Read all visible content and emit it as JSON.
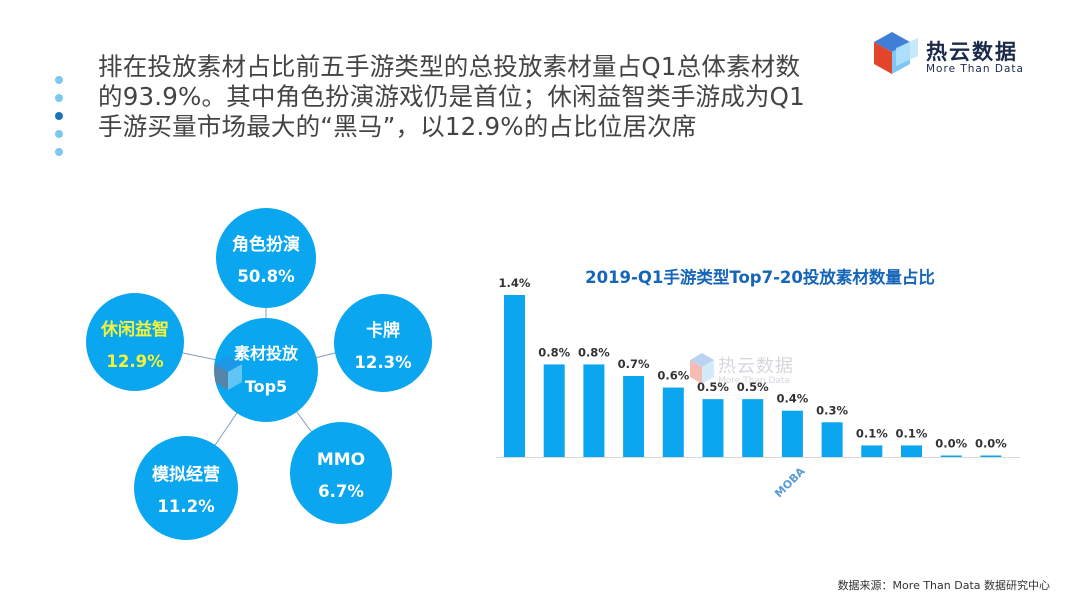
{
  "headline": "排在投放素材占比前五手游类型的总投放素材量占Q1总体素材数的93.9%。其中角色扮演游戏仍是首位；休闲益智类手游成为Q1手游买量市场最大的“黑马”，以12.9%的占比位居次席",
  "logo": {
    "name": "热云数据",
    "tagline": "More Than Data"
  },
  "bubbles": {
    "center": {
      "line1": "素材投放",
      "line2": "Top5"
    },
    "items": [
      {
        "name": "角色扮演",
        "value": "50.8%"
      },
      {
        "name": "卡牌",
        "value": "12.3%"
      },
      {
        "name": "MMO",
        "value": "6.7%"
      },
      {
        "name": "模拟经营",
        "value": "11.2%"
      },
      {
        "name": "休闲益智",
        "value": "12.9%"
      }
    ]
  },
  "colors": {
    "bubble": "#0aa6ef",
    "highlight": "#f3f33a",
    "title": "#1565b8",
    "bar": "#0aa6ef",
    "bullet_light": "#7cc8ef",
    "bullet_dark": "#1b73b6"
  },
  "chart_data": {
    "type": "bar",
    "title": "2019-Q1手游类型Top7-20投放素材数量占比",
    "categories": [
      "",
      "",
      "",
      "",
      "",
      "",
      "",
      "MOBA",
      "",
      "",
      "",
      "",
      ""
    ],
    "values": [
      1.4,
      0.8,
      0.8,
      0.7,
      0.6,
      0.5,
      0.5,
      0.4,
      0.3,
      0.1,
      0.1,
      0.0,
      0.0
    ],
    "labels": [
      "1.4%",
      "0.8%",
      "0.8%",
      "0.7%",
      "0.6%",
      "0.5%",
      "0.5%",
      "0.4%",
      "0.3%",
      "0.1%",
      "0.1%",
      "0.0%",
      "0.0%"
    ],
    "ylim": [
      0,
      1.4
    ],
    "grid": false,
    "xlabel": "",
    "ylabel": ""
  },
  "watermark": {
    "name": "热云数据",
    "tagline": "More Than Data"
  },
  "source": "数据来源：More Than Data 数据研究中心"
}
